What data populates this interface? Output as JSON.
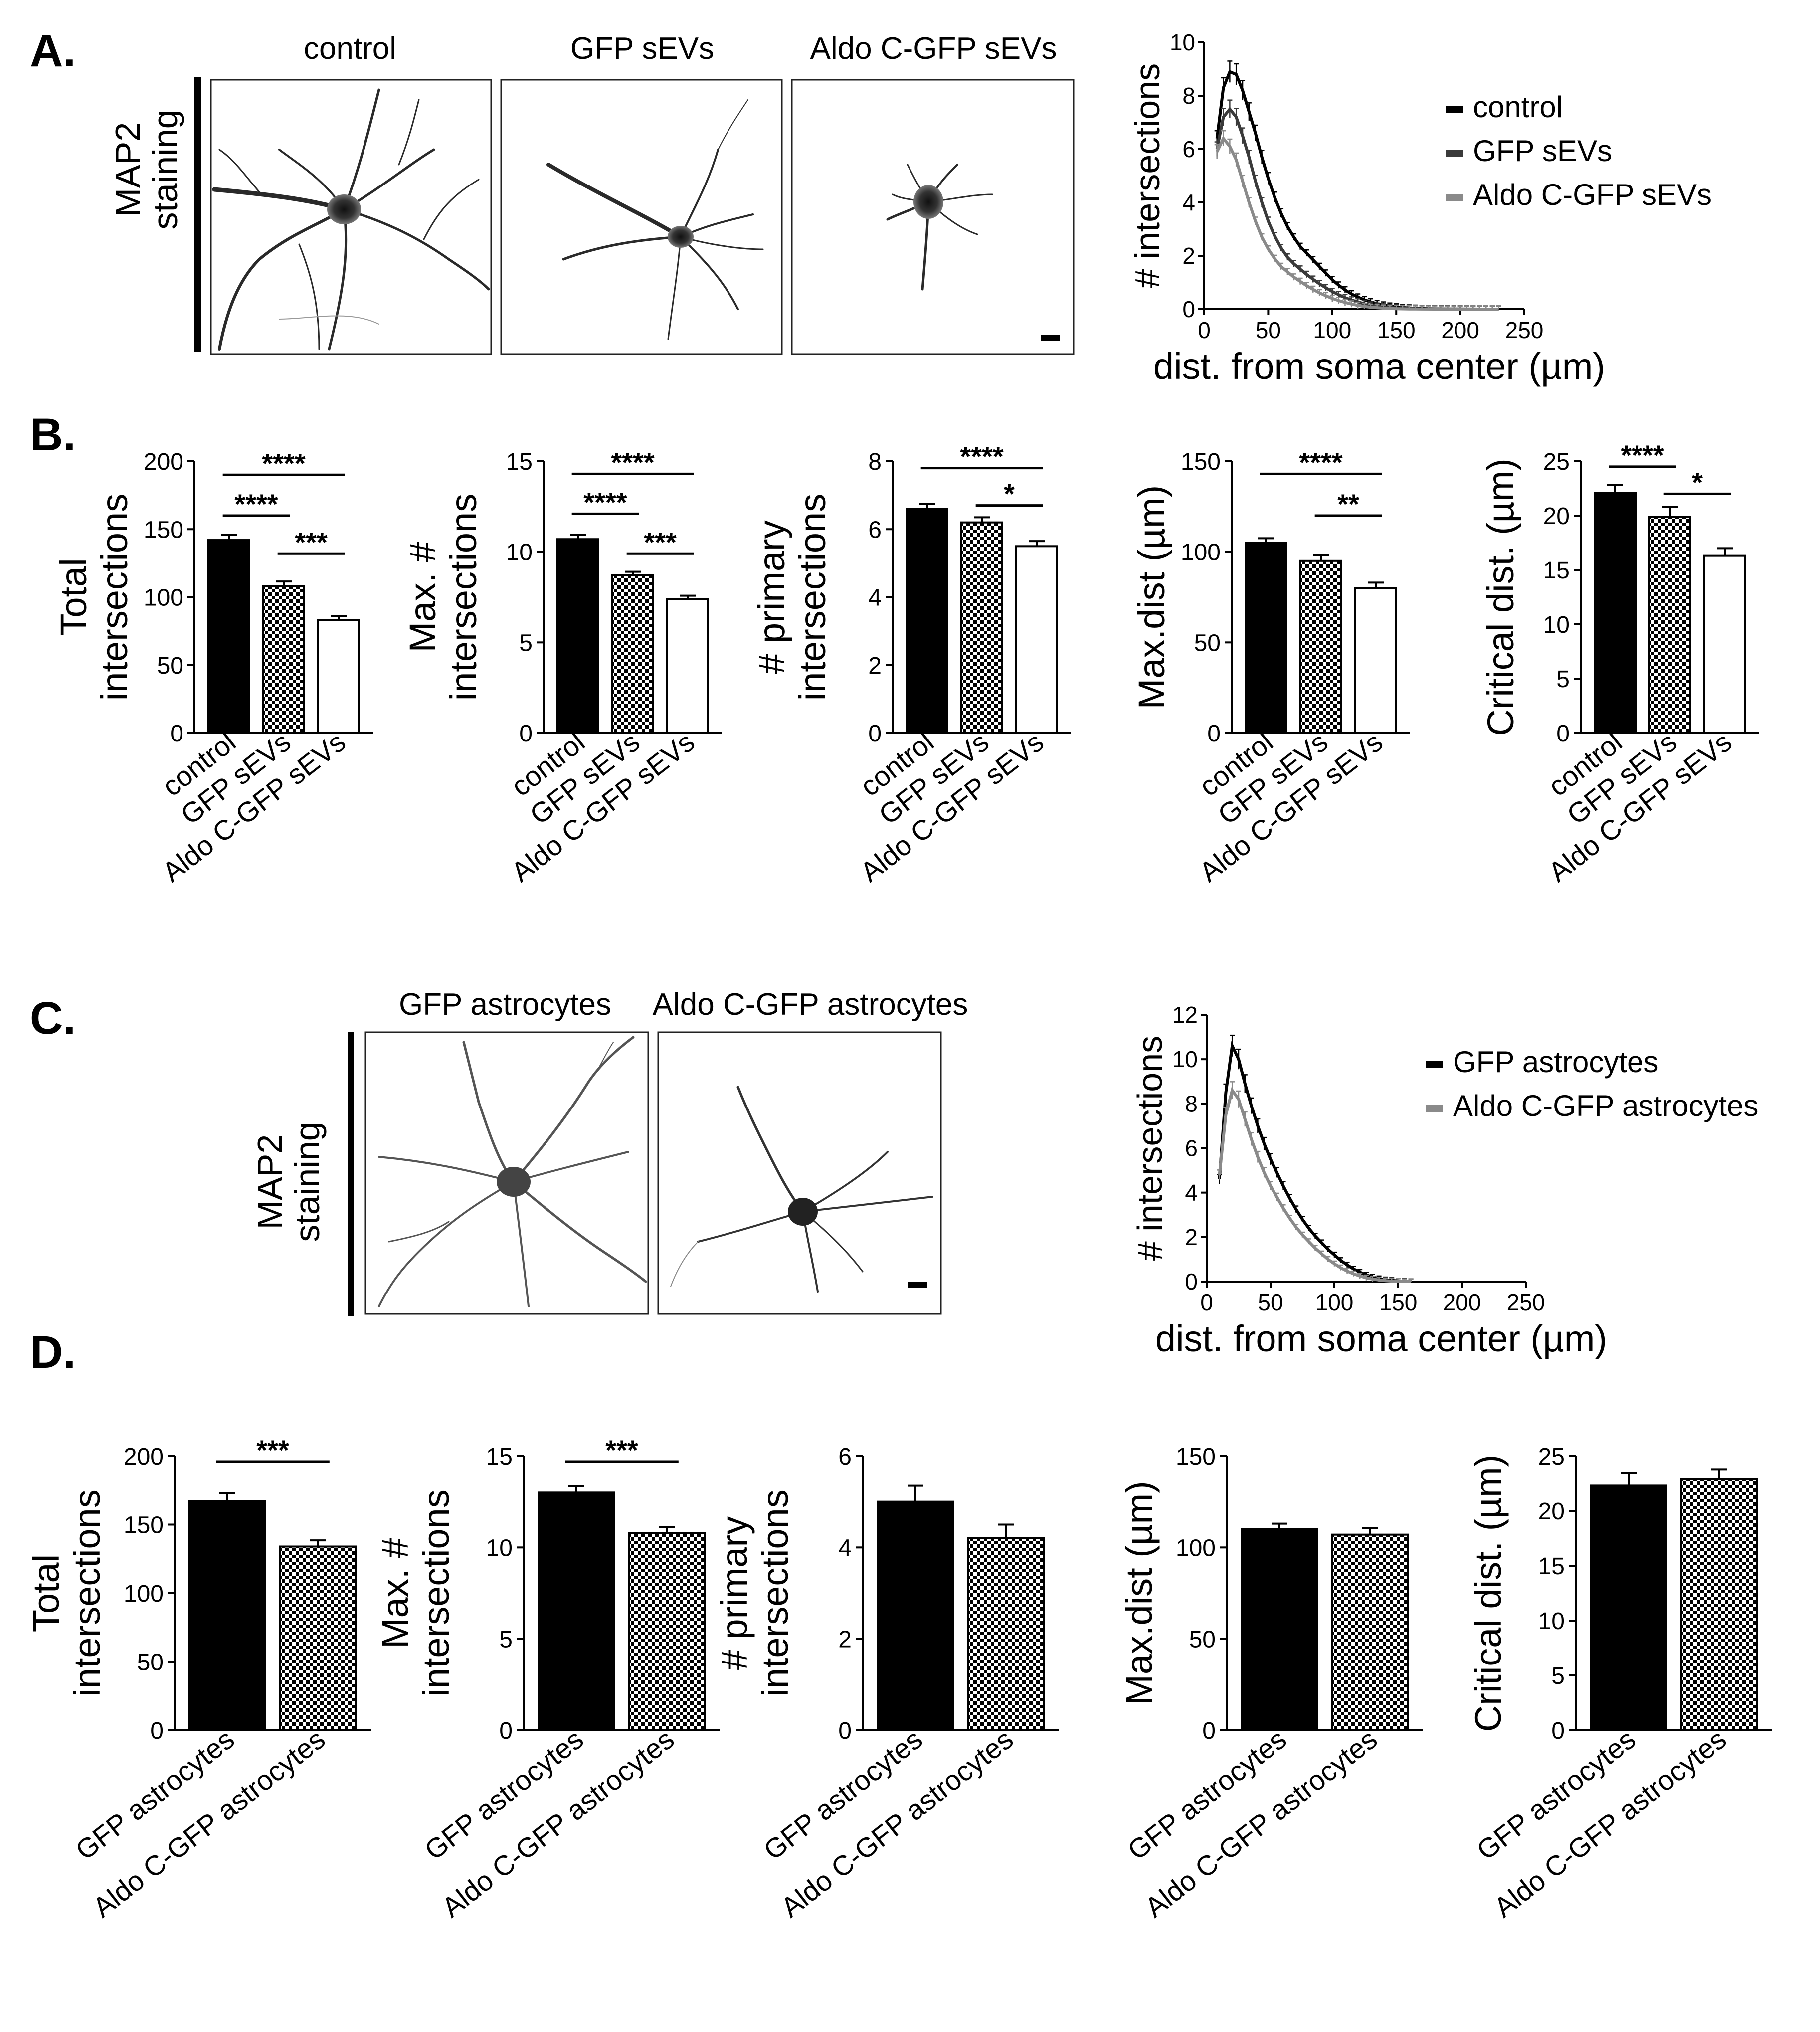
{
  "figure": {
    "panel_labels": [
      "A.",
      "B.",
      "C.",
      "D."
    ],
    "scale_bar_note": ""
  },
  "panel_a": {
    "image_titles": [
      "control",
      "GFP sEVs",
      "Aldo C-GFP sEVs"
    ],
    "side_label": [
      "MAP2",
      "staining"
    ]
  },
  "panel_c": {
    "image_titles": [
      "GFP astrocytes",
      "Aldo C-GFP astrocytes"
    ],
    "side_label": [
      "MAP2",
      "staining"
    ]
  },
  "colors": {
    "black": "#000000",
    "dark_gray": "#3a3a3a",
    "light_gray": "#8a8a8a",
    "axis": "#000000"
  },
  "chart_data": [
    {
      "id": "A-sholl",
      "type": "line",
      "title": "",
      "xlabel": "dist. from soma center (µm)",
      "ylabel": "# intersections",
      "xlim": [
        0,
        250
      ],
      "ylim": [
        0,
        10
      ],
      "xticks": [
        "0",
        "50",
        "100",
        "150",
        "200",
        "250"
      ],
      "yticks": [
        "0",
        "2",
        "4",
        "6",
        "8",
        "10"
      ],
      "legend": [
        "control",
        "GFP sEVs",
        "Aldo C-GFP sEVs"
      ],
      "x": [
        10,
        15,
        20,
        25,
        30,
        35,
        40,
        45,
        50,
        55,
        60,
        65,
        70,
        75,
        80,
        85,
        90,
        95,
        100,
        105,
        110,
        115,
        120,
        125,
        130,
        135,
        140,
        145,
        150,
        155,
        160,
        165,
        170,
        175,
        180,
        185,
        190,
        195,
        200,
        205,
        210,
        215,
        220,
        225,
        230
      ],
      "series": [
        {
          "name": "control",
          "color": "#000000",
          "values": [
            6.4,
            8.3,
            8.9,
            8.8,
            8.2,
            7.4,
            6.6,
            5.7,
            4.9,
            4.2,
            3.6,
            3.1,
            2.7,
            2.35,
            2.1,
            1.85,
            1.6,
            1.35,
            1.1,
            0.9,
            0.72,
            0.57,
            0.45,
            0.35,
            0.27,
            0.2,
            0.15,
            0.11,
            0.08,
            0.06,
            0.04,
            0.03,
            0.02,
            0.015,
            0.01,
            0.008,
            0.006,
            0.004,
            0.003,
            0.002,
            0.001,
            0,
            0,
            0,
            0
          ]
        },
        {
          "name": "GFP sEVs",
          "color": "#3a3a3a",
          "values": [
            6.0,
            7.2,
            7.5,
            7.2,
            6.5,
            5.7,
            4.8,
            4.0,
            3.3,
            2.75,
            2.3,
            1.95,
            1.7,
            1.5,
            1.3,
            1.12,
            0.95,
            0.8,
            0.66,
            0.54,
            0.43,
            0.34,
            0.27,
            0.2,
            0.15,
            0.11,
            0.08,
            0.06,
            0.04,
            0.03,
            0.02,
            0.015,
            0.01,
            0.007,
            0.005,
            0.003,
            0.002,
            0.001,
            0,
            0,
            0,
            0,
            0,
            0,
            0
          ]
        },
        {
          "name": "Aldo C-GFP sEVs",
          "color": "#8a8a8a",
          "values": [
            5.9,
            6.4,
            6.1,
            5.6,
            4.8,
            4.0,
            3.3,
            2.7,
            2.25,
            1.9,
            1.6,
            1.4,
            1.2,
            1.04,
            0.88,
            0.74,
            0.61,
            0.5,
            0.4,
            0.32,
            0.25,
            0.19,
            0.14,
            0.1,
            0.07,
            0.05,
            0.035,
            0.025,
            0.015,
            0.01,
            0.006,
            0.003,
            0.002,
            0.001,
            0,
            0,
            0,
            0,
            0,
            0,
            0,
            0,
            0,
            0,
            0
          ]
        }
      ]
    },
    {
      "id": "B1",
      "type": "bar",
      "ylabel": [
        "Total",
        "intersections"
      ],
      "ylim": [
        0,
        200
      ],
      "yticks": [
        "0",
        "50",
        "100",
        "150",
        "200"
      ],
      "categories": [
        "control",
        "GFP sEVs",
        "Aldo C-GFP sEVs"
      ],
      "values": [
        142,
        108,
        83
      ],
      "errors": [
        4,
        3.5,
        3
      ],
      "fills": [
        "black",
        "checker",
        "white"
      ],
      "significance": [
        {
          "from": 0,
          "to": 2,
          "label": "****",
          "y": 190
        },
        {
          "from": 0,
          "to": 1,
          "label": "****",
          "y": 160
        },
        {
          "from": 1,
          "to": 2,
          "label": "***",
          "y": 132
        }
      ]
    },
    {
      "id": "B2",
      "type": "bar",
      "ylabel": [
        "Max. #",
        "intersections"
      ],
      "ylim": [
        0,
        15
      ],
      "yticks": [
        "0",
        "5",
        "10",
        "15"
      ],
      "categories": [
        "control",
        "GFP sEVs",
        "Aldo C-GFP sEVs"
      ],
      "values": [
        10.7,
        8.7,
        7.4
      ],
      "errors": [
        0.25,
        0.2,
        0.18
      ],
      "fills": [
        "black",
        "checker",
        "white"
      ],
      "significance": [
        {
          "from": 0,
          "to": 2,
          "label": "****",
          "y": 14.3
        },
        {
          "from": 0,
          "to": 1,
          "label": "****",
          "y": 12.1
        },
        {
          "from": 1,
          "to": 2,
          "label": "***",
          "y": 9.9
        }
      ]
    },
    {
      "id": "B3",
      "type": "bar",
      "ylabel": [
        "# primary",
        "intersections"
      ],
      "ylim": [
        0,
        8
      ],
      "yticks": [
        "0",
        "2",
        "4",
        "6",
        "8"
      ],
      "categories": [
        "control",
        "GFP sEVs",
        "Aldo C-GFP sEVs"
      ],
      "values": [
        6.6,
        6.2,
        5.5
      ],
      "errors": [
        0.15,
        0.15,
        0.15
      ],
      "fills": [
        "black",
        "checker",
        "white"
      ],
      "significance": [
        {
          "from": 0,
          "to": 2,
          "label": "****",
          "y": 7.8
        },
        {
          "from": 1,
          "to": 2,
          "label": "*",
          "y": 6.7
        }
      ]
    },
    {
      "id": "B4",
      "type": "bar",
      "ylabel": [
        "Max.dist (µm)"
      ],
      "ylim": [
        0,
        150
      ],
      "yticks": [
        "0",
        "50",
        "100",
        "150"
      ],
      "categories": [
        "control",
        "GFP sEVs",
        "Aldo C-GFP sEVs"
      ],
      "values": [
        105,
        95,
        80
      ],
      "errors": [
        2.5,
        3,
        3
      ],
      "fills": [
        "black",
        "checker",
        "white"
      ],
      "significance": [
        {
          "from": 0,
          "to": 2,
          "label": "****",
          "y": 143
        },
        {
          "from": 1,
          "to": 2,
          "label": "**",
          "y": 120
        }
      ]
    },
    {
      "id": "B5",
      "type": "bar",
      "ylabel": [
        "Critical dist. (µm)"
      ],
      "ylim": [
        0,
        25
      ],
      "yticks": [
        "0",
        "5",
        "10",
        "15",
        "20",
        "25"
      ],
      "categories": [
        "control",
        "GFP sEVs",
        "Aldo C-GFP sEVs"
      ],
      "values": [
        22.1,
        19.9,
        16.3
      ],
      "errors": [
        0.7,
        0.9,
        0.7
      ],
      "fills": [
        "black",
        "checker",
        "white"
      ],
      "significance": [
        {
          "from": 0,
          "to": 1,
          "label": "****",
          "y": 24.5
        },
        {
          "from": 1,
          "to": 2,
          "label": "*",
          "y": 22.0
        }
      ]
    },
    {
      "id": "C-sholl",
      "type": "line",
      "title": "",
      "xlabel": "dist. from soma center (µm)",
      "ylabel": "# intersections",
      "xlim": [
        0,
        250
      ],
      "ylim": [
        0,
        12
      ],
      "xticks": [
        "0",
        "50",
        "100",
        "150",
        "200",
        "250"
      ],
      "yticks": [
        "0",
        "2",
        "4",
        "6",
        "8",
        "10",
        "12"
      ],
      "legend": [
        "GFP astrocytes",
        "Aldo C-GFP astrocytes"
      ],
      "x": [
        10,
        15,
        20,
        25,
        30,
        35,
        40,
        45,
        50,
        55,
        60,
        65,
        70,
        75,
        80,
        85,
        90,
        95,
        100,
        105,
        110,
        115,
        120,
        125,
        130,
        135,
        140,
        145,
        150,
        155,
        160
      ],
      "series": [
        {
          "name": "GFP astrocytes",
          "color": "#000000",
          "values": [
            4.6,
            8.5,
            10.6,
            10.0,
            8.9,
            7.9,
            7.0,
            6.2,
            5.5,
            4.9,
            4.3,
            3.75,
            3.25,
            2.8,
            2.4,
            2.05,
            1.75,
            1.45,
            1.2,
            0.95,
            0.75,
            0.57,
            0.42,
            0.3,
            0.2,
            0.13,
            0.08,
            0.05,
            0.03,
            0.01,
            0
          ]
        },
        {
          "name": "Aldo C-GFP astrocytes",
          "color": "#8a8a8a",
          "values": [
            4.8,
            7.5,
            8.6,
            8.2,
            7.3,
            6.4,
            5.6,
            4.9,
            4.3,
            3.8,
            3.3,
            2.85,
            2.45,
            2.1,
            1.8,
            1.5,
            1.25,
            1.0,
            0.8,
            0.62,
            0.47,
            0.35,
            0.25,
            0.17,
            0.11,
            0.07,
            0.04,
            0.02,
            0.01,
            0,
            0
          ]
        }
      ]
    },
    {
      "id": "D1",
      "type": "bar",
      "ylabel": [
        "Total",
        "intersections"
      ],
      "ylim": [
        0,
        200
      ],
      "yticks": [
        "0",
        "50",
        "100",
        "150",
        "200"
      ],
      "categories": [
        "GFP astrocytes",
        "Aldo C-GFP astrocytes"
      ],
      "values": [
        167,
        134
      ],
      "errors": [
        6,
        4.5
      ],
      "fills": [
        "black",
        "checker"
      ],
      "significance": [
        {
          "from": 0,
          "to": 1,
          "label": "***",
          "y": 196
        }
      ]
    },
    {
      "id": "D2",
      "type": "bar",
      "ylabel": [
        "Max. #",
        "intersections"
      ],
      "ylim": [
        0,
        15
      ],
      "yticks": [
        "0",
        "5",
        "10",
        "15"
      ],
      "categories": [
        "GFP astrocytes",
        "Aldo C-GFP astrocytes"
      ],
      "values": [
        13.0,
        10.8
      ],
      "errors": [
        0.35,
        0.3
      ],
      "fills": [
        "black",
        "checker"
      ],
      "significance": [
        {
          "from": 0,
          "to": 1,
          "label": "***",
          "y": 14.7
        }
      ]
    },
    {
      "id": "D3",
      "type": "bar",
      "ylabel": [
        "# primary",
        "intersections"
      ],
      "ylim": [
        0,
        6
      ],
      "yticks": [
        "0",
        "2",
        "4",
        "6"
      ],
      "categories": [
        "GFP astrocytes",
        "Aldo C-GFP astrocytes"
      ],
      "values": [
        5.0,
        4.2
      ],
      "errors": [
        0.35,
        0.3
      ],
      "fills": [
        "black",
        "checker"
      ],
      "significance": []
    },
    {
      "id": "D4",
      "type": "bar",
      "ylabel": [
        "Max.dist (µm)"
      ],
      "ylim": [
        0,
        150
      ],
      "yticks": [
        "0",
        "50",
        "100",
        "150"
      ],
      "categories": [
        "GFP astrocytes",
        "Aldo C-GFP astrocytes"
      ],
      "values": [
        110,
        107
      ],
      "errors": [
        3,
        3.5
      ],
      "fills": [
        "black",
        "checker"
      ],
      "significance": []
    },
    {
      "id": "D5",
      "type": "bar",
      "ylabel": [
        "Critical dist. (µm)"
      ],
      "ylim": [
        0,
        25
      ],
      "yticks": [
        "0",
        "5",
        "10",
        "15",
        "20",
        "25"
      ],
      "categories": [
        "GFP astrocytes",
        "Aldo C-GFP astrocytes"
      ],
      "values": [
        22.3,
        22.9
      ],
      "errors": [
        1.2,
        0.9
      ],
      "fills": [
        "black",
        "checker"
      ],
      "significance": []
    }
  ]
}
